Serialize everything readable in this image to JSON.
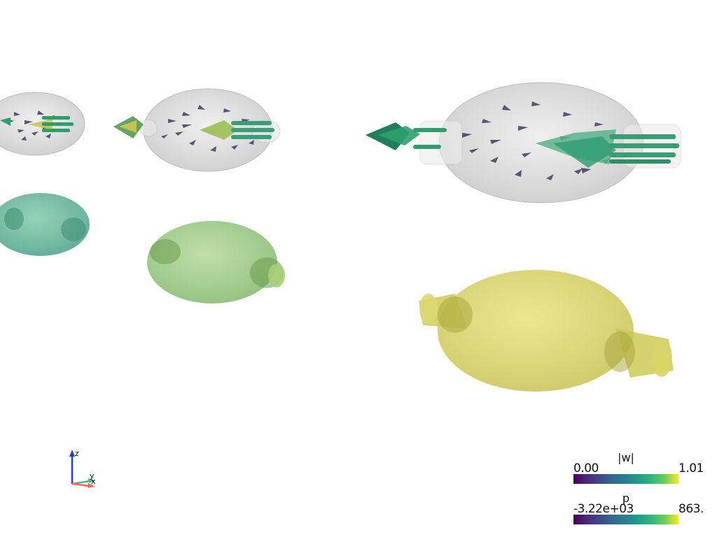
{
  "viewport": {
    "background": "#ffffff",
    "icons": {
      "glyph_arrow": "arrow-glyph-icon",
      "axes": "orientation-axes-icon"
    }
  },
  "scalar_bars": [
    {
      "title": "|w|",
      "min_label": "0.00",
      "max_label": "1.01",
      "colormap": "viridis"
    },
    {
      "title": "p",
      "min_label": "-3.22e+03",
      "max_label": "863.",
      "colormap": "viridis"
    }
  ],
  "axes_widget": {
    "x_label": "x",
    "y_label": "y",
    "z_label": "z",
    "x_color": "#ff6a4d",
    "y_color": "#3fbf7f",
    "z_color": "#1f3fd0"
  },
  "colors": {
    "shell_grey": "#c8c8c8",
    "pressure_teal": "#4fa88e",
    "pressure_green": "#8cc56f",
    "pressure_yellow": "#d6d25a",
    "glyph_purple": "#3b2f5a",
    "glyph_green": "#2f9e6e"
  }
}
